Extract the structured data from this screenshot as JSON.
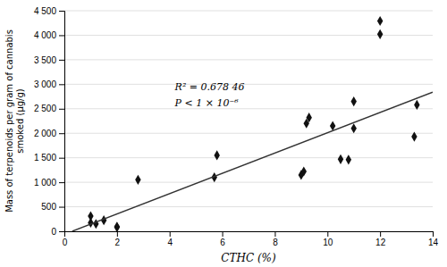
{
  "chart_data": {
    "type": "scatter",
    "xlabel": "CTHC (%)",
    "ylabel": [
      "Mass of terpenoids per gram of cannabis",
      "smoked (μg/g)"
    ],
    "xlim": [
      0,
      14
    ],
    "ylim": [
      0,
      4500
    ],
    "xticks": [
      0,
      2,
      4,
      6,
      8,
      10,
      12,
      14
    ],
    "yticks": [
      0,
      500,
      {
        "value": 1000,
        "label": "1 000"
      },
      {
        "value": 1500,
        "label": "1 500"
      },
      {
        "value": 2000,
        "label": "2 000"
      },
      {
        "value": 2500,
        "label": "2 500"
      },
      {
        "value": 3000,
        "label": "3 000"
      },
      {
        "value": 3500,
        "label": "3 500"
      },
      {
        "value": 4000,
        "label": "4 000"
      },
      {
        "value": 4500,
        "label": "4 500"
      }
    ],
    "grid": "y",
    "series": [
      {
        "type": "scatter",
        "marker": "diamond",
        "color": "#111111",
        "x": [
          1.0,
          1.0,
          1.2,
          1.5,
          2.0,
          2.0,
          2.8,
          5.7,
          5.8,
          9.0,
          9.1,
          9.2,
          9.3,
          10.2,
          10.5,
          10.8,
          11.0,
          11.0,
          12.0,
          12.0,
          13.3,
          13.4
        ],
        "values": [
          310,
          175,
          150,
          225,
          95,
          80,
          1050,
          1100,
          1550,
          1150,
          1220,
          2200,
          2320,
          2150,
          1470,
          1460,
          2100,
          2650,
          4020,
          4290,
          1930,
          2580
        ]
      },
      {
        "type": "line",
        "line_style": "solid",
        "color": "#333333",
        "x": [
          0.3,
          14.0
        ],
        "values": [
          2.1,
          2838.0
        ]
      }
    ],
    "annotations": [
      "R² = 0.678 46",
      "P < 1 × 10⁻⁶"
    ]
  }
}
